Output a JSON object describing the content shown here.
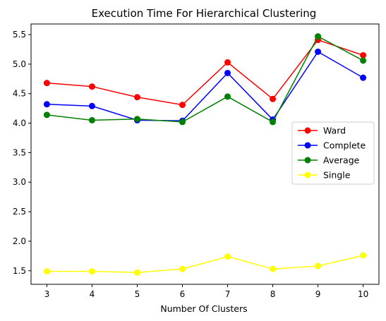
{
  "chart_data": {
    "type": "line",
    "title": "Execution Time For Hierarchical Clustering",
    "xlabel": "Number Of Clusters",
    "ylabel": "",
    "x": [
      3,
      4,
      5,
      6,
      7,
      8,
      9,
      10
    ],
    "xticks": [
      "3",
      "4",
      "5",
      "6",
      "7",
      "8",
      "9",
      "10"
    ],
    "yticks": [
      "1.5",
      "2.0",
      "2.5",
      "3.0",
      "3.5",
      "4.0",
      "4.5",
      "5.0",
      "5.5"
    ],
    "ylim": [
      1.27,
      5.68
    ],
    "xlim": [
      2.65,
      10.35
    ],
    "grid": false,
    "legend_position": "center-right",
    "marker": "circle",
    "series": [
      {
        "name": "Ward",
        "color": "#ff0000",
        "values": [
          4.68,
          4.62,
          4.44,
          4.31,
          5.03,
          4.41,
          5.41,
          5.15
        ]
      },
      {
        "name": "Complete",
        "color": "#0000ff",
        "values": [
          4.32,
          4.29,
          4.05,
          4.04,
          4.85,
          4.06,
          5.21,
          4.77
        ]
      },
      {
        "name": "Average",
        "color": "#008000",
        "values": [
          4.14,
          4.05,
          4.07,
          4.02,
          4.45,
          4.02,
          5.47,
          5.06
        ]
      },
      {
        "name": "Single",
        "color": "#ffff00",
        "values": [
          1.49,
          1.49,
          1.47,
          1.53,
          1.74,
          1.53,
          1.58,
          1.76
        ]
      }
    ]
  }
}
